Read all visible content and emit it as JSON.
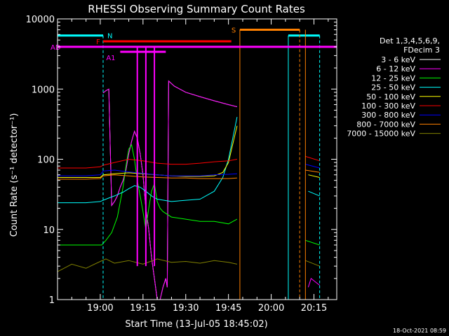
{
  "chart_data": {
    "type": "line",
    "title": "RHESSI Observing Summary Count Rates",
    "xlabel": "Start Time (13-Jul-05 18:45:02)",
    "ylabel": "Count Rate (s⁻¹ detector⁻¹)",
    "y_scale": "log",
    "ylim": [
      1,
      10000
    ],
    "xlim": [
      "18:45",
      "20:23"
    ],
    "x_ticks": [
      "19:00",
      "19:15",
      "19:30",
      "19:45",
      "20:00",
      "20:15"
    ],
    "y_ticks": [
      "1",
      "10",
      "100",
      "1000",
      "10000"
    ],
    "timestamp": "18-Oct-2021 08:59",
    "legend": {
      "title": [
        "Det 1,3,4,5,6,9,",
        "FDecim 3"
      ],
      "placement": "right"
    },
    "series": [
      {
        "name": "3 - 6 keV",
        "color": "#ffffff",
        "x": [
          "18:45",
          "19:00",
          "19:01",
          "19:02",
          "19:03",
          "19:04",
          "19:05",
          "19:06",
          "19:07",
          "19:08",
          "19:09",
          "19:10",
          "19:11",
          "19:12",
          "19:13",
          "19:14",
          "19:15",
          "19:16",
          "19:17",
          "19:18",
          "19:19",
          "19:20",
          "19:21",
          "19:22",
          "19:23",
          "19:23.5",
          "19:24",
          "19:26",
          "19:30",
          "19:35",
          "19:40",
          "19:45",
          "19:48"
        ],
        "y": [
          null,
          null,
          880,
          950,
          1000,
          22,
          25,
          30,
          40,
          50,
          70,
          120,
          180,
          250,
          200,
          120,
          60,
          20,
          10,
          4,
          2,
          1,
          1,
          1.5,
          2,
          1.5,
          1300,
          1100,
          900,
          780,
          680,
          600,
          560
        ]
      },
      {
        "name": "6 - 12 keV",
        "color": "#ff00ff",
        "x": [
          "18:45",
          "19:00",
          "19:01",
          "19:02",
          "19:03",
          "19:04",
          "19:05",
          "19:06",
          "19:07",
          "19:08",
          "19:09",
          "19:10",
          "19:11",
          "19:12",
          "19:13",
          "19:14",
          "19:15",
          "19:16",
          "19:17",
          "19:18",
          "19:19",
          "19:20",
          "19:21",
          "19:22",
          "19:23",
          "19:23.5",
          "19:24",
          "19:26",
          "19:30",
          "19:35",
          "19:40",
          "19:45",
          "19:48",
          "20:07",
          "20:10",
          "20:12",
          "20:13",
          "20:14",
          "20:17"
        ],
        "y": [
          null,
          null,
          880,
          950,
          1000,
          22,
          25,
          30,
          40,
          50,
          70,
          120,
          180,
          250,
          200,
          120,
          60,
          20,
          10,
          4,
          2,
          1,
          1,
          1.5,
          2,
          1.5,
          1300,
          1100,
          900,
          780,
          680,
          600,
          560,
          null,
          null,
          null,
          1.5,
          2,
          1.6
        ]
      },
      {
        "name": "12 - 25 keV",
        "color": "#00ff00",
        "x": [
          "18:45",
          "19:00",
          "19:00.5",
          "19:02",
          "19:04",
          "19:06",
          "19:08",
          "19:09",
          "19:10",
          "19:11",
          "19:12",
          "19:13",
          "19:14",
          "19:15",
          "19:16",
          "19:17",
          "19:18",
          "19:19",
          "19:20",
          "19:21",
          "19:22",
          "19:25",
          "19:30",
          "19:35",
          "19:40",
          "19:45",
          "19:48",
          "20:07",
          "20:10",
          "20:12",
          "20:17"
        ],
        "y": [
          6,
          6,
          6,
          7,
          9,
          15,
          40,
          80,
          140,
          160,
          100,
          50,
          30,
          18,
          10,
          20,
          35,
          45,
          25,
          20,
          18,
          15,
          14,
          13,
          13,
          12,
          14,
          null,
          null,
          7,
          6
        ]
      },
      {
        "name": "25 - 50 keV",
        "color": "#00ffff",
        "x": [
          "18:45",
          "18:55",
          "19:00",
          "19:01",
          "19:03",
          "19:05",
          "19:08",
          "19:10",
          "19:12",
          "19:14",
          "19:16",
          "19:18",
          "19:20",
          "19:25",
          "19:30",
          "19:35",
          "19:40",
          "19:43",
          "19:45",
          "19:48",
          "20:07",
          "20:10",
          "20:13",
          "20:17"
        ],
        "y": [
          24,
          24,
          25,
          26,
          28,
          30,
          34,
          38,
          42,
          40,
          35,
          30,
          27,
          25,
          26,
          27,
          35,
          55,
          100,
          400,
          null,
          null,
          35,
          30
        ]
      },
      {
        "name": "50 - 100 keV",
        "color": "#ffff00",
        "x": [
          "18:45",
          "19:00",
          "19:01",
          "19:05",
          "19:10",
          "19:15",
          "19:20",
          "19:25",
          "19:30",
          "19:35",
          "19:40",
          "19:43",
          "19:45",
          "19:48",
          "20:07",
          "20:10",
          "20:13",
          "20:17"
        ],
        "y": [
          55,
          55,
          60,
          62,
          64,
          62,
          60,
          58,
          57,
          57,
          58,
          65,
          90,
          300,
          null,
          null,
          60,
          55
        ]
      },
      {
        "name": "100 - 300 keV",
        "color": "#ff0000",
        "x": [
          "18:45",
          "18:55",
          "19:00",
          "19:01",
          "19:05",
          "19:10",
          "19:15",
          "19:20",
          "19:25",
          "19:30",
          "19:35",
          "19:40",
          "19:45",
          "19:48",
          "20:07",
          "20:10",
          "20:12",
          "20:17"
        ],
        "y": [
          75,
          75,
          78,
          82,
          90,
          100,
          95,
          88,
          85,
          85,
          88,
          92,
          95,
          100,
          null,
          null,
          110,
          95
        ]
      },
      {
        "name": "300 - 800 keV",
        "color": "#0000ff",
        "x": [
          "18:45",
          "18:55",
          "19:00",
          "19:01",
          "19:05",
          "19:10",
          "19:15",
          "19:20",
          "19:25",
          "19:30",
          "19:35",
          "19:40",
          "19:45",
          "19:48",
          "20:07",
          "20:10",
          "20:12",
          "20:17"
        ],
        "y": [
          58,
          58,
          60,
          68,
          70,
          66,
          63,
          60,
          58,
          58,
          58,
          60,
          61,
          62,
          null,
          null,
          85,
          75
        ]
      },
      {
        "name": "800 - 7000 keV",
        "color": "#ff8000",
        "x": [
          "18:45",
          "18:55",
          "19:00",
          "19:01",
          "19:05",
          "19:10",
          "19:15",
          "19:20",
          "19:25",
          "19:30",
          "19:35",
          "19:40",
          "19:45",
          "19:48",
          "20:07",
          "20:10",
          "20:12",
          "20:17"
        ],
        "y": [
          52,
          52,
          53,
          58,
          60,
          58,
          56,
          55,
          54,
          54,
          53,
          53,
          53,
          54,
          null,
          null,
          70,
          65
        ]
      },
      {
        "name": "7000 - 15000 keV",
        "color": "#808000",
        "x": [
          "18:45",
          "18:50",
          "18:55",
          "19:00",
          "19:02",
          "19:05",
          "19:10",
          "19:15",
          "19:20",
          "19:25",
          "19:30",
          "19:35",
          "19:40",
          "19:45",
          "19:48",
          "20:07",
          "20:10",
          "20:12",
          "20:17"
        ],
        "y": [
          2.5,
          3.2,
          2.8,
          3.5,
          3.8,
          3.3,
          3.6,
          3.2,
          3.8,
          3.4,
          3.5,
          3.3,
          3.6,
          3.4,
          3.2,
          null,
          null,
          3.6,
          3.0
        ]
      }
    ],
    "annotations": {
      "N": {
        "label": "N",
        "color": "#00ffff",
        "level": 5800,
        "spans": [
          [
            "18:45",
            "19:01"
          ],
          [
            "20:06",
            "20:17"
          ]
        ],
        "dashed_lines": [
          "19:01",
          "20:17"
        ],
        "solid_lines": [
          "20:06"
        ]
      },
      "S": {
        "label": "S",
        "color": "#ff8000",
        "level": 7000,
        "spans": [
          [
            "19:49",
            "20:10"
          ]
        ],
        "solid_lines": [
          "19:49",
          "20:12"
        ],
        "dashed_lines": [
          "20:10"
        ]
      },
      "F": {
        "label": "F",
        "color": "#ff0000",
        "level": 4800,
        "spans": [
          [
            "19:01",
            "19:46"
          ]
        ]
      },
      "AD": {
        "label": "AD",
        "color": "#ff00ff",
        "level": 4000,
        "spans": [
          [
            "18:45",
            "20:23"
          ]
        ]
      },
      "A1": {
        "label": "A1",
        "color": "#ff00ff",
        "level": 3400,
        "spans": [
          [
            "19:07",
            "19:23"
          ]
        ]
      },
      "spikes": {
        "color": "#ff00ff",
        "at": [
          "19:13",
          "19:19",
          "19:16"
        ]
      }
    }
  }
}
